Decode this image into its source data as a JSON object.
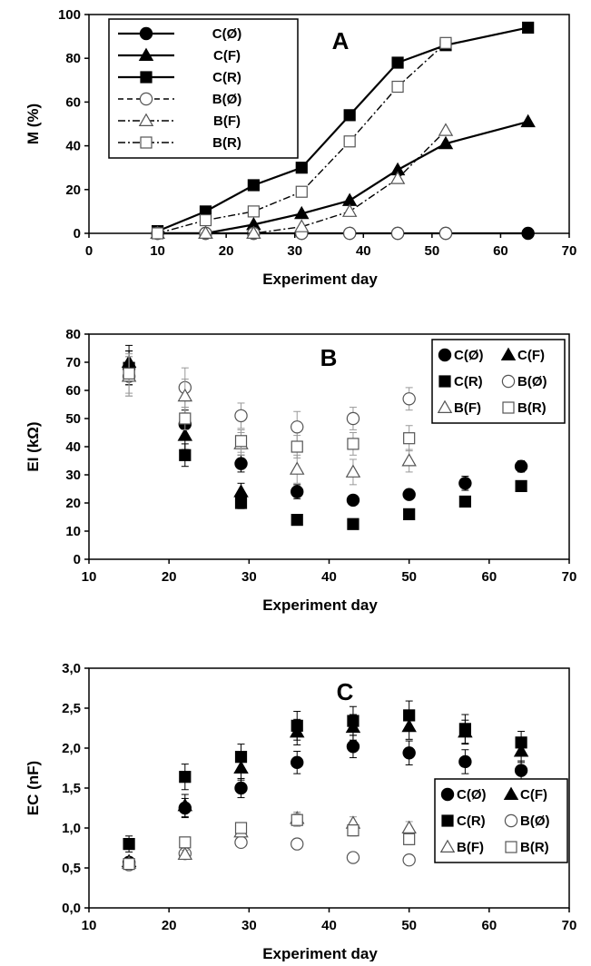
{
  "chart_data": [
    {
      "type": "line",
      "panel_label": "A",
      "xlabel": "Experiment day",
      "ylabel": "M (%)",
      "xlim": [
        0,
        70
      ],
      "ylim": [
        0,
        100
      ],
      "xticks": [
        0,
        10,
        20,
        30,
        40,
        50,
        60,
        70
      ],
      "yticks": [
        0,
        20,
        40,
        60,
        80,
        100
      ],
      "legend_position": "top-left",
      "series": [
        {
          "name": "C(Ø)",
          "marker": "circle",
          "fill": "filled",
          "line": "solid",
          "x": [
            10,
            17,
            24,
            31,
            38,
            45,
            52,
            64
          ],
          "y": [
            0,
            0,
            0,
            0,
            0,
            0,
            0,
            0
          ]
        },
        {
          "name": "C(F)",
          "marker": "triangle",
          "fill": "filled",
          "line": "solid",
          "x": [
            10,
            17,
            24,
            31,
            38,
            45,
            52,
            64
          ],
          "y": [
            0,
            0,
            4,
            9,
            15,
            29,
            41,
            51
          ]
        },
        {
          "name": "C(R)",
          "marker": "square",
          "fill": "filled",
          "line": "solid",
          "x": [
            10,
            17,
            24,
            31,
            38,
            45,
            52,
            64
          ],
          "y": [
            1,
            10,
            22,
            30,
            54,
            78,
            86,
            94
          ]
        },
        {
          "name": "B(Ø)",
          "marker": "circle",
          "fill": "open",
          "line": "dashed",
          "x": [
            10,
            17,
            24,
            31,
            38,
            45,
            52
          ],
          "y": [
            0,
            0,
            0,
            0,
            0,
            0,
            0
          ]
        },
        {
          "name": "B(F)",
          "marker": "triangle",
          "fill": "open",
          "line": "dashdot",
          "x": [
            10,
            17,
            24,
            31,
            38,
            45,
            52
          ],
          "y": [
            0,
            0,
            0,
            3,
            10,
            25,
            47
          ]
        },
        {
          "name": "B(R)",
          "marker": "square",
          "fill": "open",
          "line": "dashdot",
          "x": [
            10,
            17,
            24,
            31,
            38,
            45,
            52
          ],
          "y": [
            0,
            6,
            10,
            19,
            42,
            67,
            87
          ]
        }
      ]
    },
    {
      "type": "scatter",
      "panel_label": "B",
      "xlabel": "Experiment day",
      "ylabel": "EI (kΩ)",
      "xlim": [
        10,
        70
      ],
      "ylim": [
        0,
        80
      ],
      "xticks": [
        10,
        20,
        30,
        40,
        50,
        60,
        70
      ],
      "yticks": [
        0,
        10,
        20,
        30,
        40,
        50,
        60,
        70,
        80
      ],
      "legend_position": "top-right",
      "series": [
        {
          "name": "C(Ø)",
          "marker": "circle",
          "fill": "filled",
          "x": [
            15,
            22,
            29,
            36,
            43,
            50,
            57,
            64
          ],
          "y": [
            68,
            48,
            34,
            24,
            21,
            23,
            27,
            33
          ],
          "err": [
            6,
            5,
            3,
            2.5,
            1.5,
            1.5,
            2.5,
            2
          ]
        },
        {
          "name": "C(F)",
          "marker": "triangle",
          "fill": "filled",
          "x": [
            15,
            22,
            29
          ],
          "y": [
            70,
            44,
            24
          ],
          "err": [
            6,
            5,
            3
          ]
        },
        {
          "name": "C(R)",
          "marker": "square",
          "fill": "filled",
          "x": [
            15,
            22,
            29,
            36,
            43,
            50,
            57,
            64
          ],
          "y": [
            68,
            37,
            20,
            14,
            12.5,
            16,
            20.5,
            26
          ],
          "err": [
            6,
            4,
            2,
            1.5,
            1,
            1,
            1,
            1.5
          ]
        },
        {
          "name": "B(Ø)",
          "marker": "circle",
          "fill": "open",
          "x": [
            15,
            22,
            29,
            36,
            43,
            50
          ],
          "y": [
            65,
            61,
            51,
            47,
            50,
            57
          ],
          "err": [
            7,
            7,
            4.5,
            5.5,
            4,
            4
          ]
        },
        {
          "name": "B(F)",
          "marker": "triangle",
          "fill": "open",
          "x": [
            15,
            22,
            29,
            36,
            43,
            50
          ],
          "y": [
            65,
            58,
            41,
            32,
            31,
            35
          ],
          "err": [
            7,
            6,
            4,
            5,
            4.5,
            4
          ]
        },
        {
          "name": "B(R)",
          "marker": "square",
          "fill": "open",
          "x": [
            15,
            22,
            29,
            36,
            43,
            50
          ],
          "y": [
            66,
            50,
            42,
            40,
            41,
            43
          ],
          "err": [
            7,
            4,
            4,
            4,
            4,
            4.5
          ]
        }
      ]
    },
    {
      "type": "scatter",
      "panel_label": "C",
      "xlabel": "Experiment day",
      "ylabel": "EC (nF)",
      "xlim": [
        10,
        70
      ],
      "ylim": [
        0,
        3
      ],
      "xticks": [
        10,
        20,
        30,
        40,
        50,
        60,
        70
      ],
      "yticks": [
        0,
        0.5,
        1,
        1.5,
        2,
        2.5,
        3
      ],
      "ytick_labels": [
        "0,0",
        "0,5",
        "1,0",
        "1,5",
        "2,0",
        "2,5",
        "3,0"
      ],
      "legend_position": "bottom-right",
      "series": [
        {
          "name": "C(Ø)",
          "marker": "circle",
          "fill": "filled",
          "x": [
            15,
            22,
            29,
            36,
            43,
            50,
            57,
            64
          ],
          "y": [
            0.57,
            1.25,
            1.5,
            1.82,
            2.02,
            1.94,
            1.83,
            1.72
          ],
          "err": [
            0.05,
            0.12,
            0.12,
            0.14,
            0.14,
            0.15,
            0.15,
            0.12
          ]
        },
        {
          "name": "C(F)",
          "marker": "triangle",
          "fill": "filled",
          "x": [
            15,
            22,
            29,
            36,
            43,
            50,
            57,
            64
          ],
          "y": [
            0.58,
            1.28,
            1.75,
            2.2,
            2.26,
            2.27,
            2.2,
            1.96
          ],
          "err": [
            0.05,
            0.14,
            0.15,
            0.16,
            0.16,
            0.16,
            0.15,
            0.14
          ]
        },
        {
          "name": "C(R)",
          "marker": "square",
          "fill": "filled",
          "x": [
            15,
            22,
            29,
            36,
            43,
            50,
            57,
            64
          ],
          "y": [
            0.8,
            1.64,
            1.89,
            2.28,
            2.34,
            2.41,
            2.24,
            2.07
          ],
          "err": [
            0.1,
            0.16,
            0.16,
            0.18,
            0.18,
            0.18,
            0.18,
            0.14
          ]
        },
        {
          "name": "B(Ø)",
          "marker": "circle",
          "fill": "open",
          "x": [
            15,
            22,
            29,
            36,
            43,
            50
          ],
          "y": [
            0.54,
            0.68,
            0.82,
            0.8,
            0.63,
            0.6
          ],
          "err": [
            0.04,
            0.05,
            0.05,
            0.06,
            0.05,
            0.05
          ]
        },
        {
          "name": "B(F)",
          "marker": "triangle",
          "fill": "open",
          "x": [
            15,
            22,
            29,
            36,
            43,
            50
          ],
          "y": [
            0.56,
            0.67,
            0.95,
            1.12,
            1.06,
            1.0
          ],
          "err": [
            0.04,
            0.05,
            0.06,
            0.08,
            0.08,
            0.08
          ]
        },
        {
          "name": "B(R)",
          "marker": "square",
          "fill": "open",
          "x": [
            15,
            22,
            29,
            36,
            43,
            50
          ],
          "y": [
            0.55,
            0.82,
            1.0,
            1.1,
            0.97,
            0.86
          ],
          "err": [
            0.04,
            0.06,
            0.06,
            0.08,
            0.07,
            0.07
          ]
        }
      ]
    }
  ]
}
